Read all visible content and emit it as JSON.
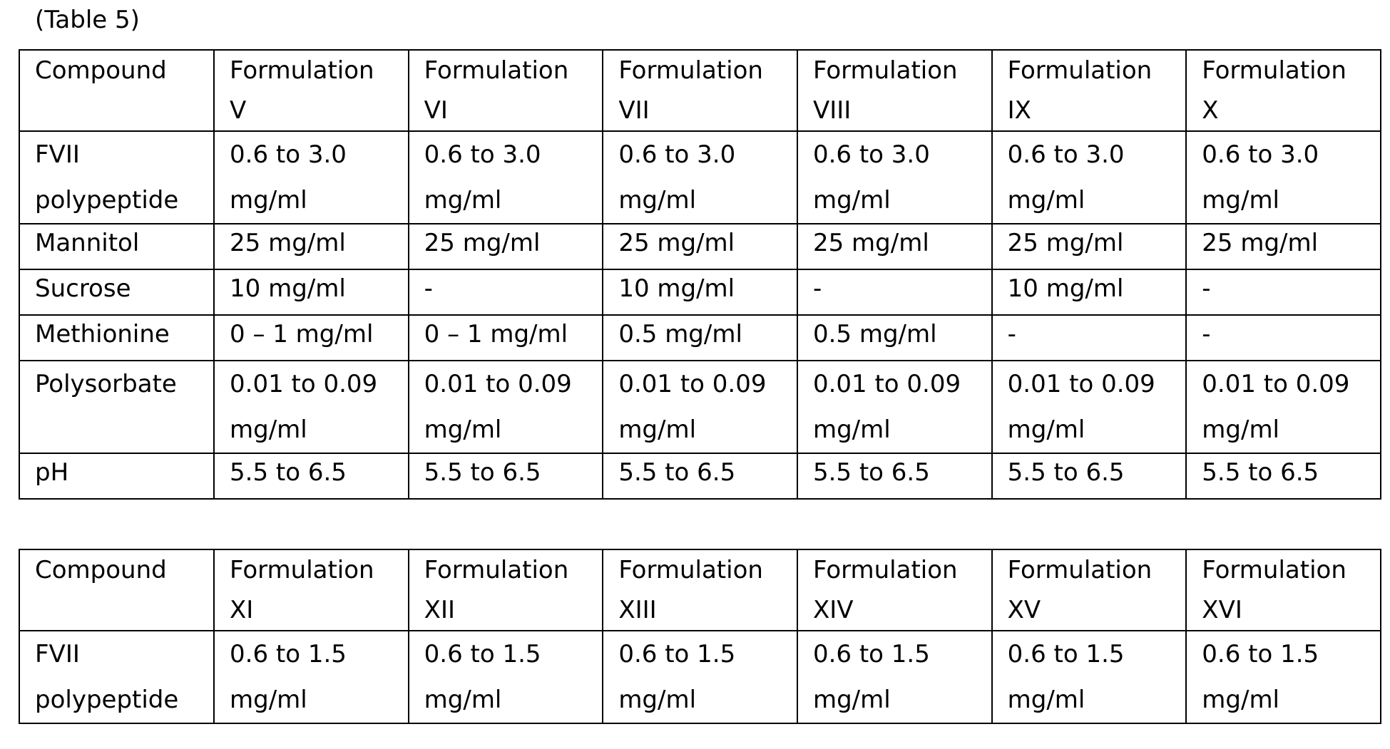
{
  "caption": "(Table 5)",
  "tables": [
    {
      "headers": [
        "Compound",
        "Formulation\nV",
        "Formulation\nVI",
        "Formulation\nVII",
        "Formulation\nVIII",
        "Formulation\nIX",
        "Formulation\nX"
      ],
      "rows": [
        [
          "FVII\npolypeptide",
          "0.6 to 3.0\nmg/ml",
          "0.6 to 3.0\nmg/ml",
          "0.6 to 3.0\nmg/ml",
          "0.6 to 3.0\nmg/ml",
          "0.6 to 3.0\nmg/ml",
          "0.6 to 3.0\nmg/ml"
        ],
        [
          "Mannitol",
          "25 mg/ml",
          "25 mg/ml",
          "25 mg/ml",
          "25 mg/ml",
          "25 mg/ml",
          "25 mg/ml"
        ],
        [
          "Sucrose",
          "10 mg/ml",
          "-",
          "10 mg/ml",
          "-",
          "10 mg/ml",
          "-"
        ],
        [
          "Methionine",
          "0 – 1 mg/ml",
          "0 – 1 mg/ml",
          "0.5 mg/ml",
          "0.5 mg/ml",
          "-",
          "-"
        ],
        [
          "Polysorbate",
          "0.01 to 0.09\nmg/ml",
          "0.01 to 0.09\nmg/ml",
          "0.01 to 0.09\nmg/ml",
          "0.01 to 0.09\nmg/ml",
          "0.01 to 0.09\nmg/ml",
          "0.01 to 0.09\nmg/ml"
        ],
        [
          "pH",
          "5.5 to 6.5",
          "5.5 to 6.5",
          "5.5 to 6.5",
          "5.5 to 6.5",
          "5.5 to 6.5",
          "5.5 to 6.5"
        ]
      ]
    },
    {
      "headers": [
        "Compound",
        "Formulation\nXI",
        "Formulation\nXII",
        "Formulation\nXIII",
        "Formulation\nXIV",
        "Formulation\nXV",
        "Formulation\nXVI"
      ],
      "rows": [
        [
          "FVII\npolypeptide",
          "0.6 to 1.5\nmg/ml",
          "0.6 to 1.5\nmg/ml",
          "0.6 to 1.5\nmg/ml",
          "0.6 to 1.5\nmg/ml",
          "0.6 to 1.5\nmg/ml",
          "0.6 to 1.5\nmg/ml"
        ]
      ]
    }
  ]
}
